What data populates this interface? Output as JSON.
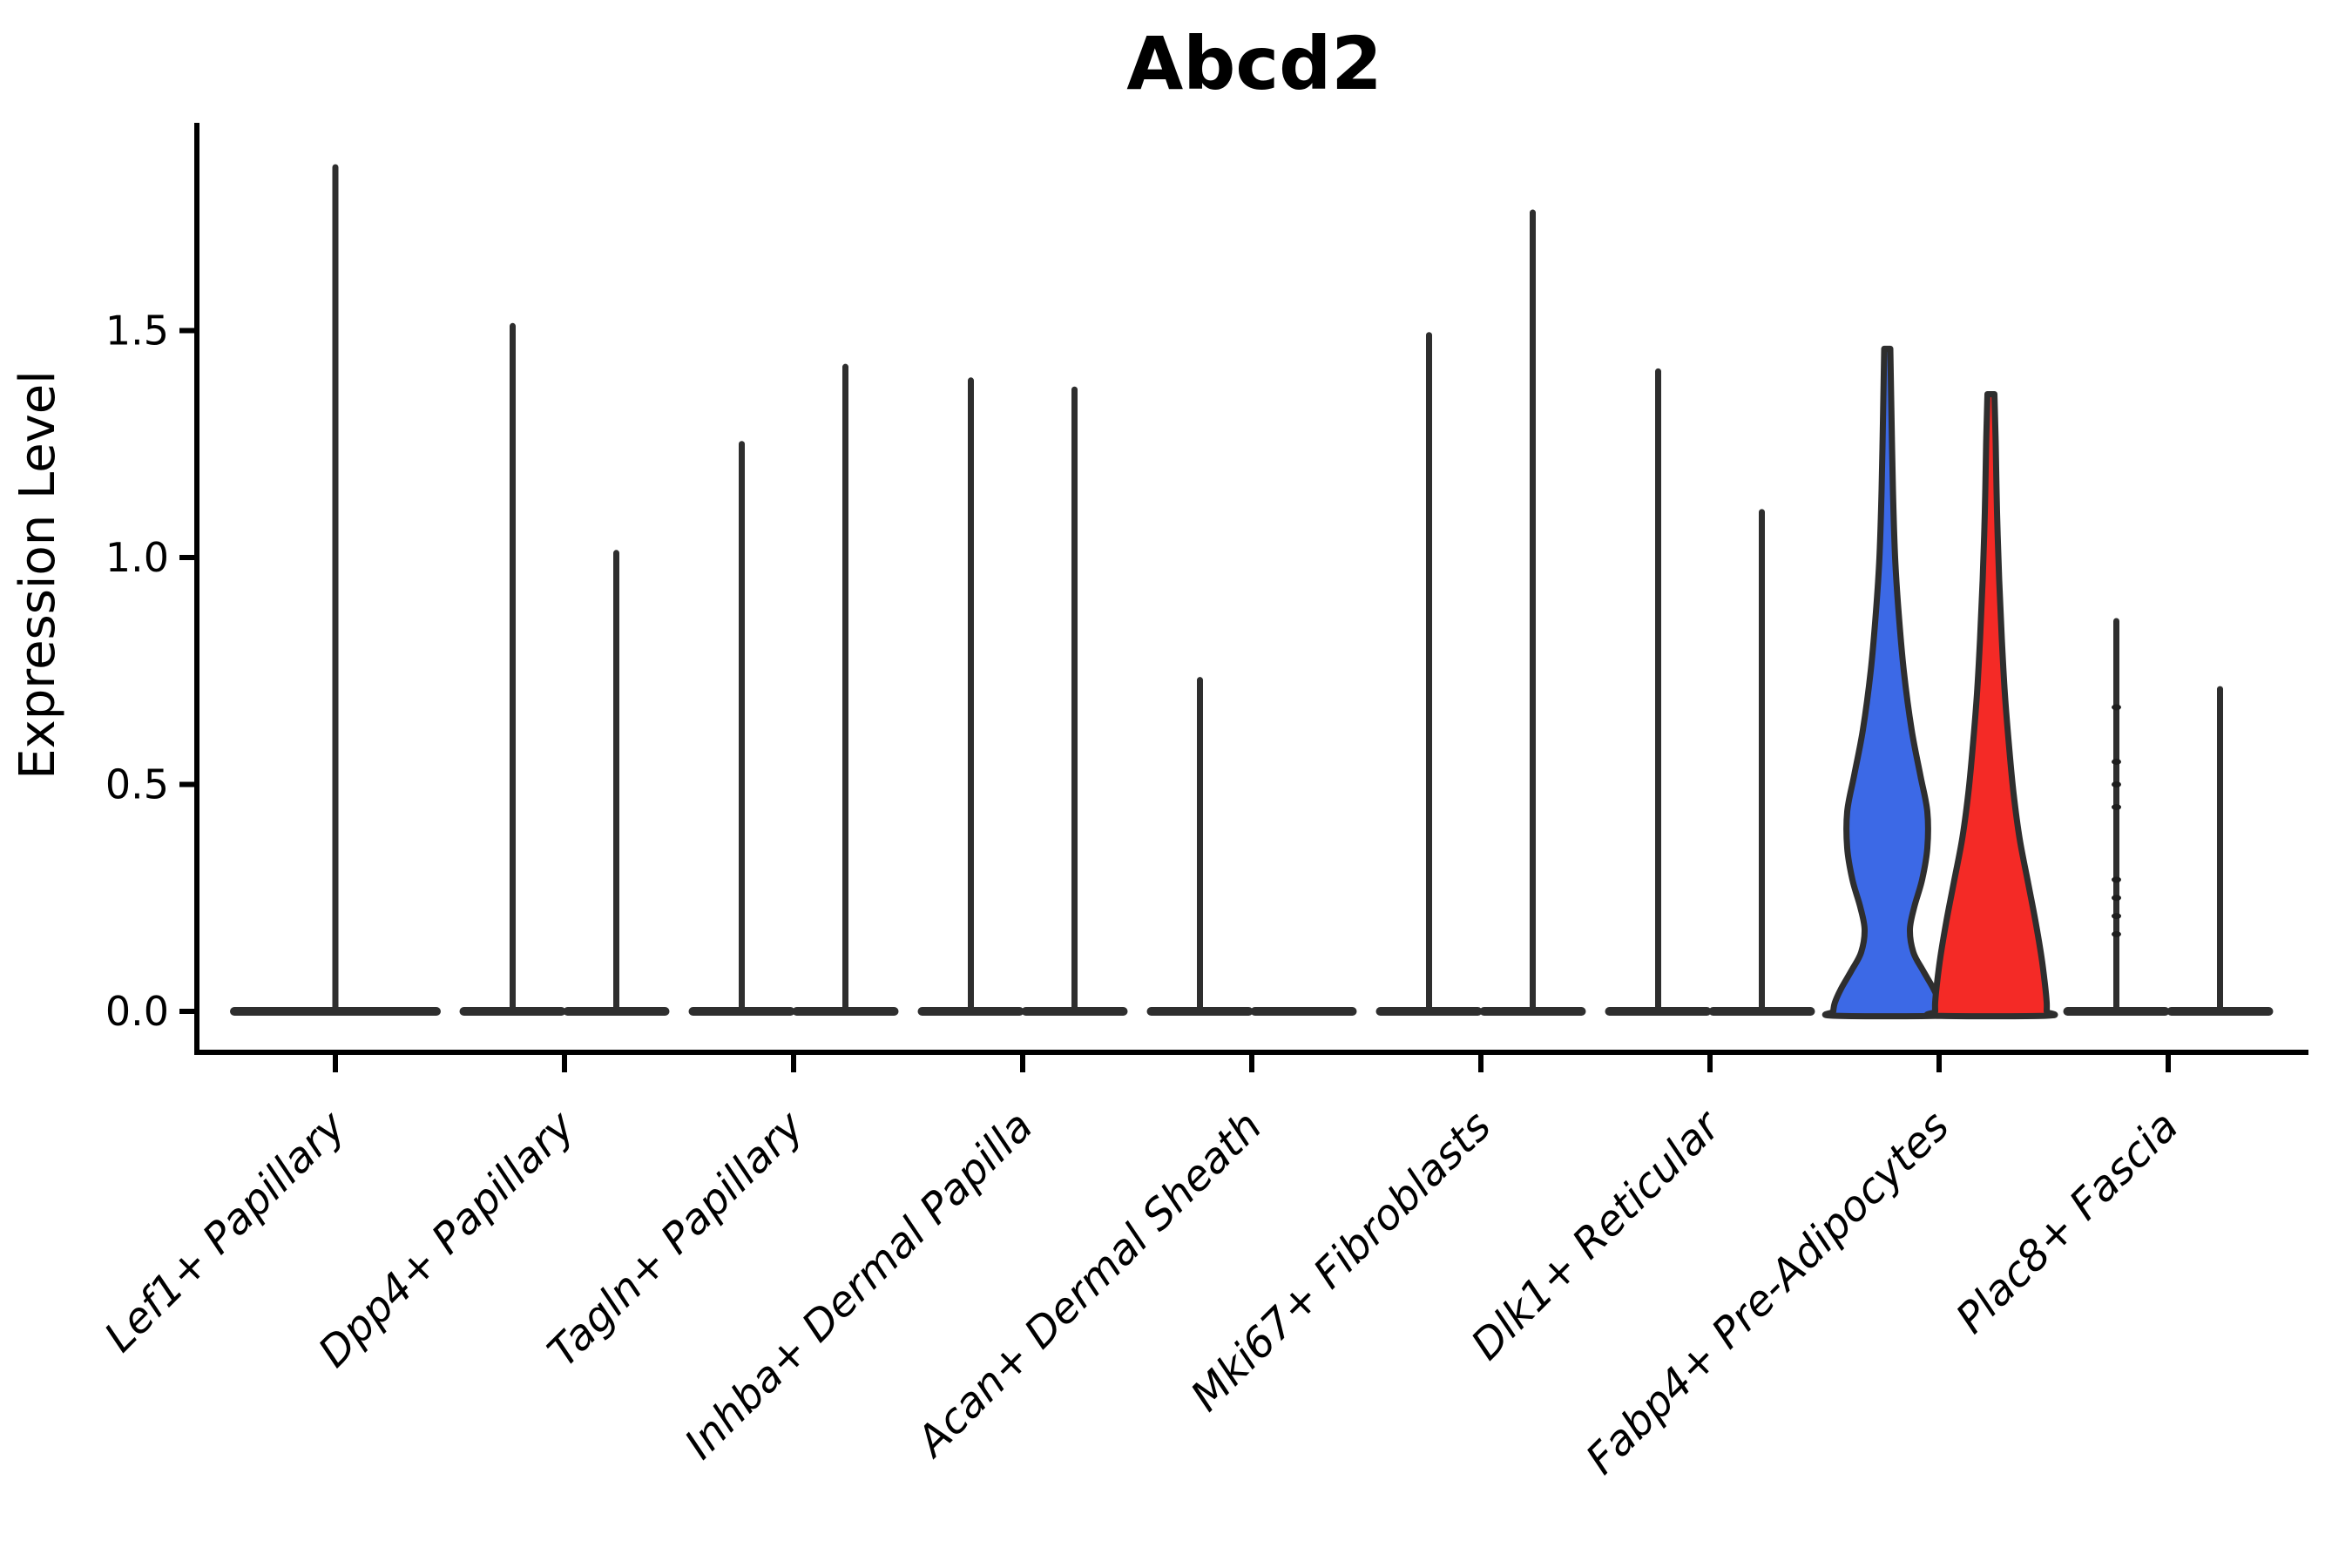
{
  "page": {
    "background": "#ffffff"
  },
  "chart_data": {
    "type": "violin",
    "title": "Abcd2",
    "ylabel": "Expression Level",
    "xlabel": "",
    "ylim": [
      0,
      1.95
    ],
    "grid": false,
    "legend": "none",
    "y_ticks": [
      {
        "value": 0.0,
        "label": "0.0"
      },
      {
        "value": 0.5,
        "label": "0.5"
      },
      {
        "value": 1.0,
        "label": "1.0"
      },
      {
        "value": 1.5,
        "label": "1.5"
      }
    ],
    "outline_color": "#2E2E2E",
    "axis_color": "#000000",
    "highlight_colors": {
      "blue": "#3C69E6",
      "red": "#F42A26"
    },
    "categories": [
      {
        "label": "Lef1+ Papillary",
        "violins": [
          {
            "pos": "center",
            "max": 1.86,
            "style": "spike"
          }
        ]
      },
      {
        "label": "Dpp4+ Papillary",
        "violins": [
          {
            "pos": "left",
            "max": 1.51,
            "style": "spike"
          },
          {
            "pos": "right",
            "max": 1.01,
            "style": "spike"
          }
        ]
      },
      {
        "label": "Tagln+ Papillary",
        "violins": [
          {
            "pos": "left",
            "max": 1.25,
            "style": "spike"
          },
          {
            "pos": "right",
            "max": 1.42,
            "style": "spike"
          }
        ]
      },
      {
        "label": "Inhba+ Dermal Papilla",
        "violins": [
          {
            "pos": "left",
            "max": 1.39,
            "style": "spike"
          },
          {
            "pos": "right",
            "max": 1.37,
            "style": "spike"
          }
        ]
      },
      {
        "label": "Acan+ Dermal Sheath",
        "violins": [
          {
            "pos": "left",
            "max": 0.73,
            "style": "spike"
          },
          {
            "pos": "right",
            "max": 0.0,
            "style": "flat"
          }
        ]
      },
      {
        "label": "Mki67+ Fibroblasts",
        "violins": [
          {
            "pos": "left",
            "max": 1.49,
            "style": "spike"
          },
          {
            "pos": "right",
            "max": 1.76,
            "style": "spike"
          }
        ]
      },
      {
        "label": "Dlk1+ Reticular",
        "violins": [
          {
            "pos": "left",
            "max": 1.41,
            "style": "spike"
          },
          {
            "pos": "right",
            "max": 1.1,
            "style": "spike"
          }
        ]
      },
      {
        "label": "Fabp4+ Pre-Adipocytes",
        "violins": [
          {
            "pos": "left",
            "max": 1.46,
            "style": "density",
            "fill": "#3C69E6",
            "profile": [
              [
                1.46,
                3.5
              ],
              [
                1.35,
                4.5
              ],
              [
                1.15,
                6.5
              ],
              [
                1.0,
                9
              ],
              [
                0.88,
                13
              ],
              [
                0.75,
                19
              ],
              [
                0.62,
                28
              ],
              [
                0.52,
                38
              ],
              [
                0.44,
                46
              ],
              [
                0.36,
                46
              ],
              [
                0.29,
                40
              ],
              [
                0.23,
                31
              ],
              [
                0.18,
                26
              ],
              [
                0.13,
                30
              ],
              [
                0.09,
                41
              ],
              [
                0.05,
                53
              ],
              [
                0.02,
                60
              ],
              [
                0.0,
                62
              ]
            ]
          },
          {
            "pos": "right",
            "max": 1.36,
            "style": "density",
            "fill": "#F42A26",
            "profile": [
              [
                1.36,
                4
              ],
              [
                1.25,
                5.5
              ],
              [
                1.1,
                7
              ],
              [
                0.95,
                9.5
              ],
              [
                0.82,
                12.5
              ],
              [
                0.7,
                16
              ],
              [
                0.58,
                21
              ],
              [
                0.48,
                26
              ],
              [
                0.38,
                33
              ],
              [
                0.28,
                43
              ],
              [
                0.2,
                51
              ],
              [
                0.12,
                58
              ],
              [
                0.06,
                62
              ],
              [
                0.02,
                64
              ],
              [
                0.0,
                64
              ]
            ]
          }
        ]
      },
      {
        "label": "Plac8+ Fascia",
        "violins": [
          {
            "pos": "left",
            "max": 0.86,
            "style": "spike",
            "points": [
              0.67,
              0.55,
              0.5,
              0.45,
              0.29,
              0.25,
              0.21,
              0.17
            ]
          },
          {
            "pos": "right",
            "max": 0.71,
            "style": "spike"
          }
        ]
      }
    ]
  }
}
